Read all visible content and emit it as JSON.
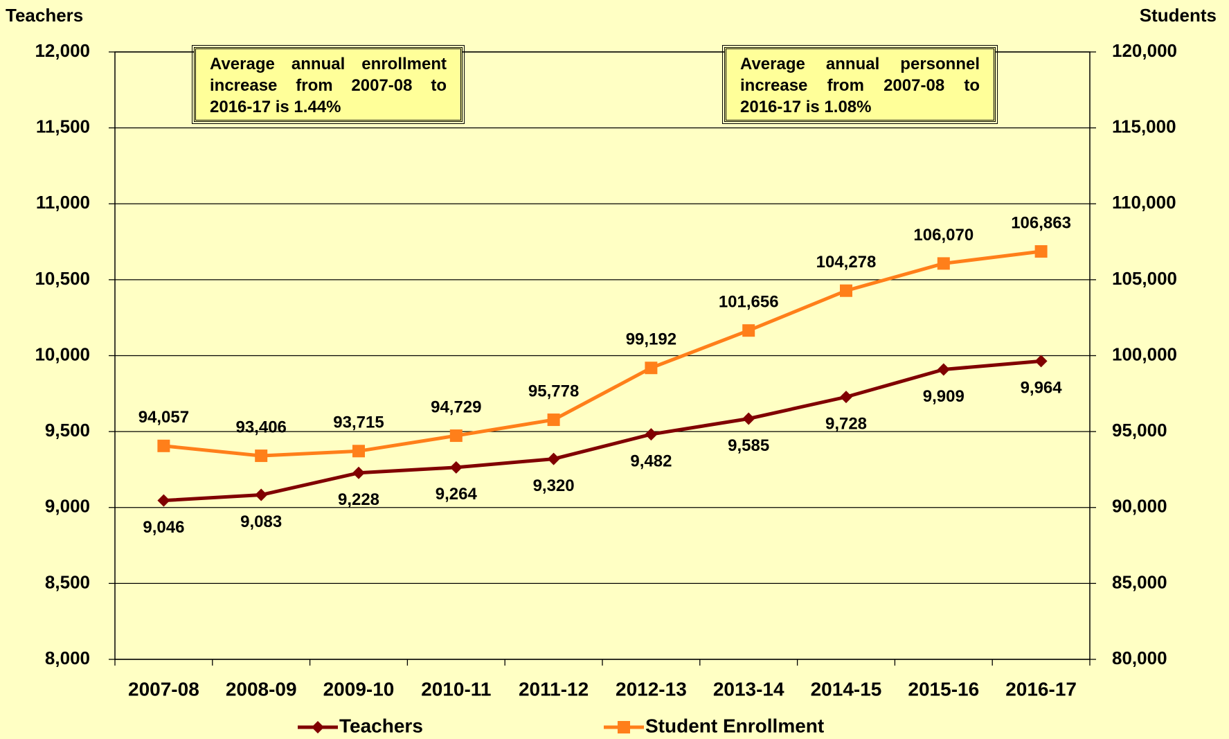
{
  "chart_data": {
    "type": "line",
    "y_label": "Teachers",
    "y2_label": "Students",
    "categories": [
      "2007-08",
      "2008-09",
      "2009-10",
      "2010-11",
      "2011-12",
      "2012-13",
      "2013-14",
      "2014-15",
      "2015-16",
      "2016-17"
    ],
    "series": [
      {
        "name": "Teachers",
        "color": "#800000",
        "marker": "diamond",
        "axis": "y",
        "values": [
          9046,
          9083,
          9228,
          9264,
          9320,
          9482,
          9585,
          9728,
          9909,
          9964
        ],
        "value_labels": [
          "9,046",
          "9,083",
          "9,228",
          "9,264",
          "9,320",
          "9,482",
          "9,585",
          "9,728",
          "9,909",
          "9,964"
        ]
      },
      {
        "name": "Student Enrollment",
        "color": "#FF7F1A",
        "marker": "square",
        "axis": "y2",
        "values": [
          94057,
          93406,
          93715,
          94729,
          95778,
          99192,
          101656,
          104278,
          106070,
          106863
        ],
        "value_labels": [
          "94,057",
          "93,406",
          "93,715",
          "94,729",
          "95,778",
          "99,192",
          "101,656",
          "104,278",
          "106,070",
          "106,863"
        ]
      }
    ],
    "ylim": [
      8000,
      12000
    ],
    "yticks": [
      {
        "value": 8000,
        "label": "8,000"
      },
      {
        "value": 8500,
        "label": "8,500"
      },
      {
        "value": 9000,
        "label": "9,000"
      },
      {
        "value": 9500,
        "label": "9,500"
      },
      {
        "value": 10000,
        "label": "10,000"
      },
      {
        "value": 10500,
        "label": "10,500"
      },
      {
        "value": 11000,
        "label": "11,000"
      },
      {
        "value": 11500,
        "label": "11,500"
      },
      {
        "value": 12000,
        "label": "12,000"
      }
    ],
    "y2lim": [
      80000,
      120000
    ],
    "y2ticks": [
      {
        "value": 80000,
        "label": "80,000"
      },
      {
        "value": 85000,
        "label": "85,000"
      },
      {
        "value": 90000,
        "label": "90,000"
      },
      {
        "value": 95000,
        "label": "95,000"
      },
      {
        "value": 100000,
        "label": "100,000"
      },
      {
        "value": 105000,
        "label": "105,000"
      },
      {
        "value": 110000,
        "label": "110,000"
      },
      {
        "value": 115000,
        "label": "115,000"
      },
      {
        "value": 120000,
        "label": "120,000"
      }
    ],
    "grid": true,
    "legend": "bottom",
    "annotations": [
      "Average annual enrollment increase from 2007-08 to 2016-17 is 1.44%",
      "Average annual personnel increase from 2007-08 to 2016-17 is 1.08%"
    ]
  }
}
